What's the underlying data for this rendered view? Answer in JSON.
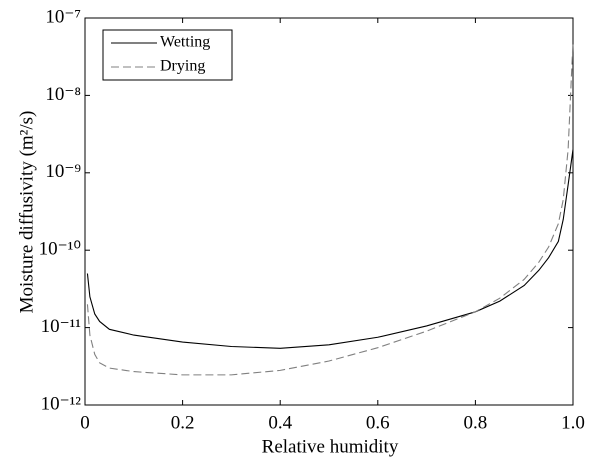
{
  "chart_data": {
    "type": "line",
    "xlabel": "Relative humidity",
    "ylabel": "Moisture diffusivity (m²/s)",
    "x": [
      0.005,
      0.01,
      0.02,
      0.03,
      0.05,
      0.1,
      0.2,
      0.3,
      0.4,
      0.5,
      0.6,
      0.7,
      0.8,
      0.85,
      0.9,
      0.93,
      0.95,
      0.97,
      0.98,
      0.99,
      1.0
    ],
    "series": [
      {
        "name": "Wetting",
        "color": "#000000",
        "dash": false,
        "values": [
          5e-11,
          2.5e-11,
          1.5e-11,
          1.2e-11,
          9.5e-12,
          8e-12,
          6.5e-12,
          5.7e-12,
          5.4e-12,
          6e-12,
          7.5e-12,
          1.05e-11,
          1.6e-11,
          2.2e-11,
          3.5e-11,
          5.5e-11,
          8e-11,
          1.3e-10,
          2.5e-10,
          7e-10,
          2e-09
        ]
      },
      {
        "name": "Drying",
        "color": "#808080",
        "dash": true,
        "values": [
          2e-11,
          8e-12,
          4.5e-12,
          3.5e-12,
          3e-12,
          2.7e-12,
          2.45e-12,
          2.45e-12,
          2.8e-12,
          3.7e-12,
          5.5e-12,
          9e-12,
          1.6e-11,
          2.4e-11,
          4.2e-11,
          7e-11,
          1.1e-10,
          2.2e-10,
          4.5e-10,
          2e-09,
          5e-08
        ]
      }
    ],
    "xlim": [
      0,
      1
    ],
    "xticks": [
      0,
      0.2,
      0.4,
      0.6,
      0.8,
      {
        "value": 1,
        "label": "1.0"
      }
    ],
    "ylim": [
      1e-12,
      1e-07
    ],
    "yticks": [
      {
        "value": 1e-12,
        "label": "10⁻¹²"
      },
      {
        "value": 1e-11,
        "label": "10⁻¹¹"
      },
      {
        "value": 1e-10,
        "label": "10⁻¹⁰"
      },
      {
        "value": 1e-09,
        "label": "10⁻⁹"
      },
      {
        "value": 1e-08,
        "label": "10⁻⁸"
      },
      {
        "value": 1e-07,
        "label": "10⁻⁷"
      }
    ],
    "log_y": true,
    "legend": "upper left"
  }
}
